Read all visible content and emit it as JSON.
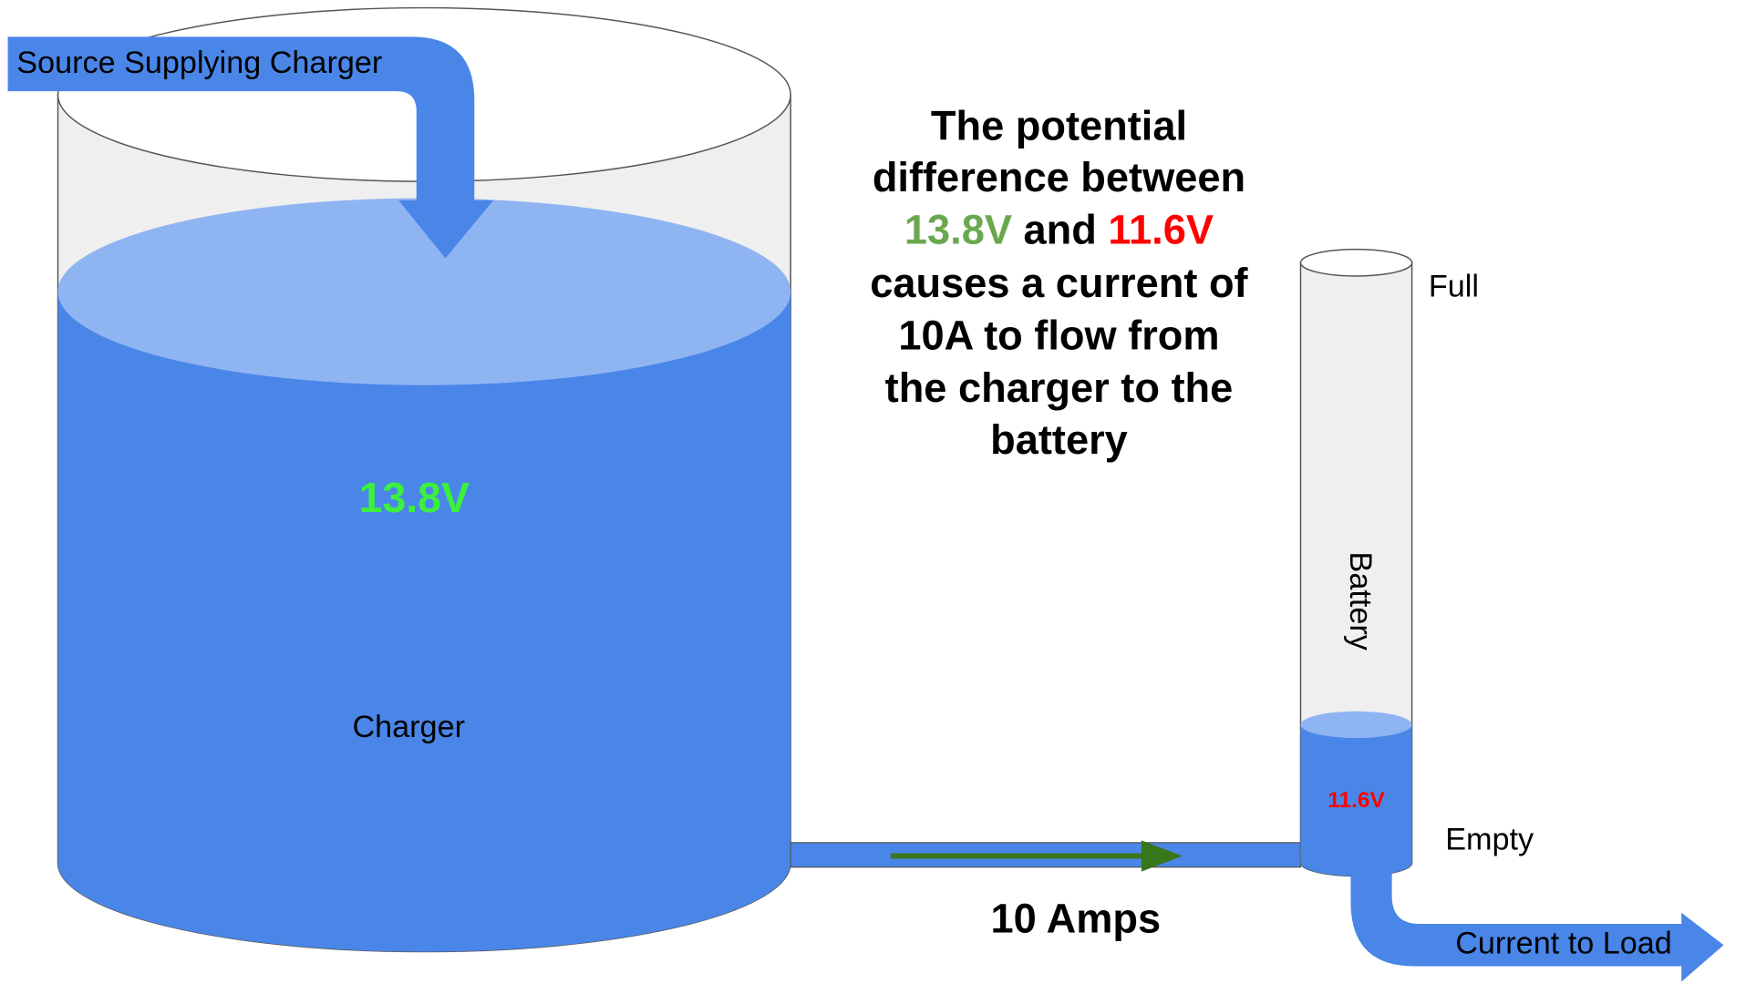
{
  "source_label": "Source Supplying Charger",
  "charger": {
    "label": "Charger",
    "voltage": "13.8V"
  },
  "battery": {
    "label": "Battery",
    "voltage": "11.6V",
    "full": "Full",
    "empty": "Empty"
  },
  "explanation": {
    "line1": "The potential",
    "line2": "difference between",
    "voltage_high": "13.8V",
    "joiner": "and",
    "voltage_low": "11.6V",
    "line4": "causes a current of",
    "line5": "10A to flow from",
    "line6": "the charger to the",
    "line7": "battery"
  },
  "current_label": "10 Amps",
  "load_label": "Current to Load"
}
